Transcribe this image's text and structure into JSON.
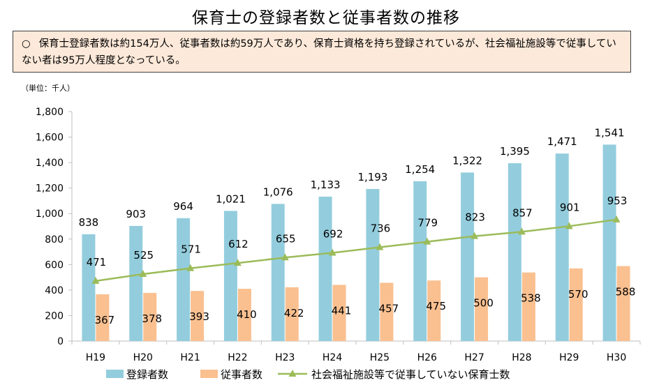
{
  "title": "保育士の登録者数と従事者数の推移",
  "note": {
    "bullet": "○",
    "text": "保育士登録者数は約154万人、従事者数は約59万人であり、保育士資格を持ち登録されているが、社会福祉施設等で従事していない者は95万人程度となっている。"
  },
  "unit_label": "（単位：千人）",
  "colors": {
    "registered": "#93cddd",
    "employed": "#fac090",
    "not_employed": "#9bbb59",
    "axis": "#bfbfbf"
  },
  "chart_data": {
    "type": "bar",
    "title": "保育士の登録者数と従事者数の推移",
    "xlabel": "",
    "ylabel": "",
    "unit": "千人",
    "ylim": [
      0,
      1800
    ],
    "yticks": [
      "0",
      "200",
      "400",
      "600",
      "800",
      "1,000",
      "1,200",
      "1,400",
      "1,600",
      "1,800"
    ],
    "ytick_values": [
      0,
      200,
      400,
      600,
      800,
      1000,
      1200,
      1400,
      1600,
      1800
    ],
    "grid": false,
    "legend_position": "bottom",
    "categories": [
      "H19",
      "H20",
      "H21",
      "H22",
      "H23",
      "H24",
      "H25",
      "H26",
      "H27",
      "H28",
      "H29",
      "H30"
    ],
    "series": [
      {
        "name": "登録者数",
        "kind": "bar",
        "values": [
          838,
          903,
          964,
          1021,
          1076,
          1133,
          1193,
          1254,
          1322,
          1395,
          1471,
          1541
        ],
        "labels": [
          "838",
          "903",
          "964",
          "1,021",
          "1,076",
          "1,133",
          "1,193",
          "1,254",
          "1,322",
          "1,395",
          "1,471",
          "1,541"
        ]
      },
      {
        "name": "従事者数",
        "kind": "bar",
        "values": [
          367,
          378,
          393,
          410,
          422,
          441,
          457,
          475,
          500,
          538,
          570,
          588
        ],
        "labels": [
          "367",
          "378",
          "393",
          "410",
          "422",
          "441",
          "457",
          "475",
          "500",
          "538",
          "570",
          "588"
        ]
      },
      {
        "name": "社会福祉施設等で従事していない保育士数",
        "kind": "line",
        "values": [
          471,
          525,
          571,
          612,
          655,
          692,
          736,
          779,
          823,
          857,
          901,
          953
        ],
        "labels": [
          "471",
          "525",
          "571",
          "612",
          "655",
          "692",
          "736",
          "779",
          "823",
          "857",
          "901",
          "953"
        ]
      }
    ]
  }
}
